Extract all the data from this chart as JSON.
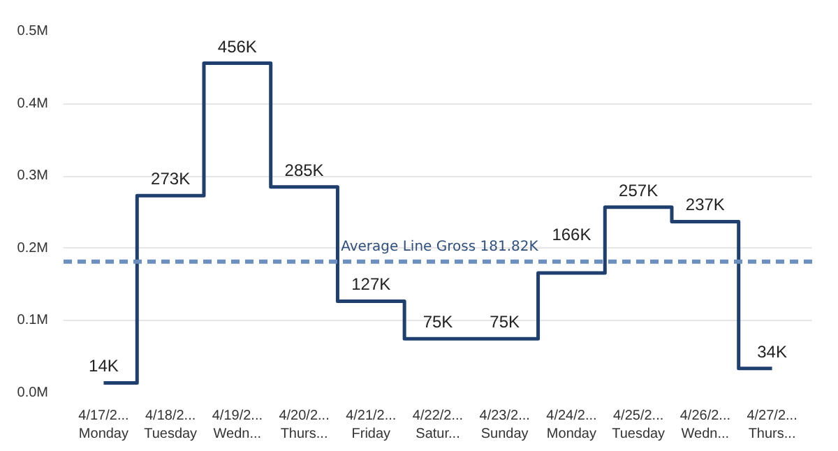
{
  "chart_data": {
    "type": "step",
    "categories": [
      "4/17/2...\nMonday",
      "4/18/2...\nTuesday",
      "4/19/2...\nWedn...",
      "4/20/2...\nThurs...",
      "4/21/2...\nFriday",
      "4/22/2...\nSatur...",
      "4/23/2...\nSunday",
      "4/24/2...\nMonday",
      "4/25/2...\nTuesday",
      "4/26/2...\nWedn...",
      "4/27/2...\nThurs..."
    ],
    "series": [
      {
        "color": "#1f3f6e",
        "values": [
          14000,
          273000,
          456000,
          285000,
          127000,
          75000,
          75000,
          166000,
          257000,
          237000,
          34000
        ],
        "value_labels": [
          "14K",
          "273K",
          "456K",
          "285K",
          "127K",
          "75K",
          "75K",
          "166K",
          "257K",
          "237K",
          "34K"
        ]
      }
    ],
    "ylim": [
      0,
      500000
    ],
    "yticks": [
      {
        "value": 0,
        "label": "0.0M"
      },
      {
        "value": 100000,
        "label": "0.1M"
      },
      {
        "value": 200000,
        "label": "0.2M"
      },
      {
        "value": 300000,
        "label": "0.3M"
      },
      {
        "value": 400000,
        "label": "0.4M"
      },
      {
        "value": 500000,
        "label": "0.5M"
      }
    ],
    "grid": "y",
    "line_style": "solid",
    "ref_lines": [
      {
        "axis": "y",
        "value": 181820,
        "label": "Average Line Gross 181.82K",
        "color": "#6b8fbf",
        "line_style": "dashed"
      }
    ]
  }
}
